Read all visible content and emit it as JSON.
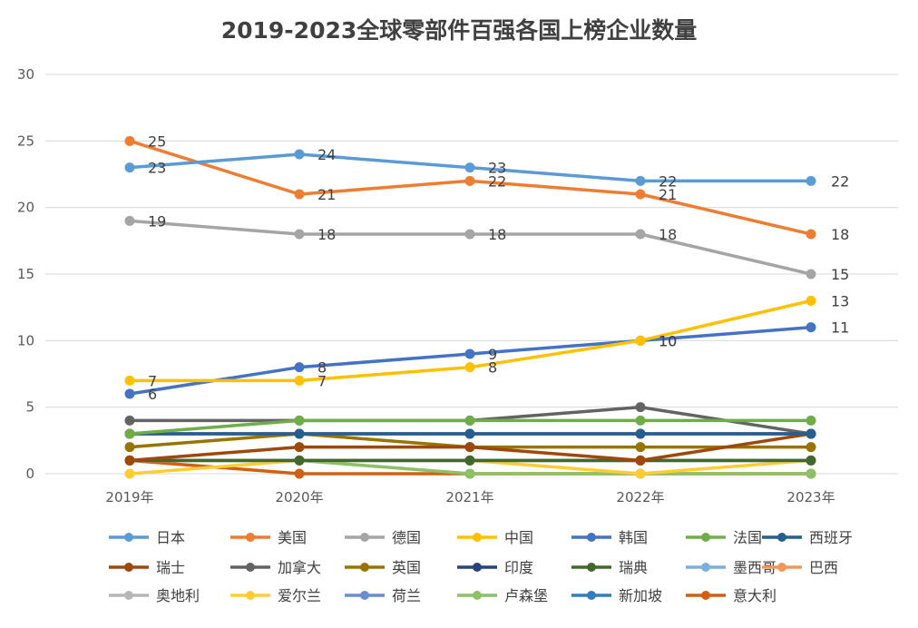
{
  "chart_data": {
    "type": "line",
    "title": "2019-2023全球零部件百强各国上榜企业数量",
    "categories": [
      "2019年",
      "2020年",
      "2021年",
      "2022年",
      "2023年"
    ],
    "ylim": [
      0,
      30
    ],
    "yticks": [
      0,
      5,
      10,
      15,
      20,
      25,
      30
    ],
    "grid": true,
    "legend_position": "bottom",
    "labeled_series": [
      "日本",
      "美国",
      "德国",
      "中国",
      "韩国"
    ],
    "series": [
      {
        "name": "日本",
        "color": "#5B9BD5",
        "values": [
          23,
          24,
          23,
          22,
          22
        ]
      },
      {
        "name": "美国",
        "color": "#ED7D31",
        "values": [
          25,
          21,
          22,
          21,
          18
        ]
      },
      {
        "name": "德国",
        "color": "#A5A5A5",
        "values": [
          19,
          18,
          18,
          18,
          15
        ]
      },
      {
        "name": "中国",
        "color": "#FFC000",
        "values": [
          7,
          7,
          8,
          10,
          13
        ]
      },
      {
        "name": "韩国",
        "color": "#4472C4",
        "values": [
          6,
          8,
          9,
          10,
          11
        ]
      },
      {
        "name": "法国",
        "color": "#70AD47",
        "values": [
          3,
          4,
          4,
          4,
          4
        ]
      },
      {
        "name": "西班牙",
        "color": "#255E91",
        "values": [
          3,
          3,
          3,
          3,
          3
        ]
      },
      {
        "name": "瑞士",
        "color": "#9E480E",
        "values": [
          1,
          2,
          2,
          1,
          3
        ]
      },
      {
        "name": "加拿大",
        "color": "#636363",
        "values": [
          4,
          4,
          4,
          5,
          3
        ]
      },
      {
        "name": "英国",
        "color": "#997300",
        "values": [
          2,
          3,
          2,
          2,
          2
        ]
      },
      {
        "name": "印度",
        "color": "#264478",
        "values": [
          3,
          3,
          3,
          3,
          3
        ]
      },
      {
        "name": "瑞典",
        "color": "#43682B",
        "values": [
          1,
          1,
          1,
          1,
          1
        ]
      },
      {
        "name": "墨西哥",
        "color": "#7CAFDD",
        "values": [
          1,
          1,
          1,
          1,
          1
        ]
      },
      {
        "name": "巴西",
        "color": "#F1975A",
        "values": [
          1,
          1,
          1,
          1,
          1
        ]
      },
      {
        "name": "奥地利",
        "color": "#B7B7B7",
        "values": [
          1,
          1,
          1,
          1,
          1
        ]
      },
      {
        "name": "爱尔兰",
        "color": "#FFCD33",
        "values": [
          0,
          1,
          1,
          0,
          1
        ]
      },
      {
        "name": "荷兰",
        "color": "#698ED0",
        "values": [
          1,
          1,
          1,
          1,
          1
        ]
      },
      {
        "name": "卢森堡",
        "color": "#8CC168",
        "values": [
          1,
          1,
          0,
          0,
          0
        ]
      },
      {
        "name": "新加坡",
        "color": "#327DC2",
        "values": [
          1,
          1,
          1,
          1,
          1
        ]
      },
      {
        "name": "意大利",
        "color": "#D26012",
        "values": [
          1,
          0,
          0,
          0,
          0
        ]
      }
    ]
  }
}
